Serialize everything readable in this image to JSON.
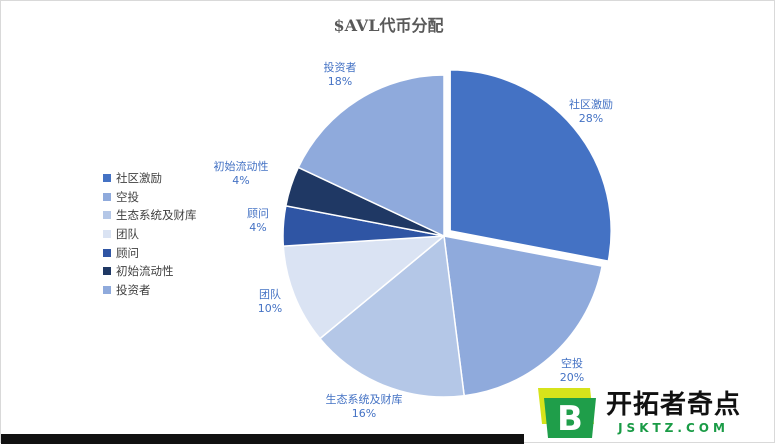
{
  "chart_data": {
    "type": "pie",
    "title": "$AVL代币分配",
    "categories": [
      "社区激励",
      "空投",
      "生态系统及财库",
      "团队",
      "顾问",
      "初始流动性",
      "投资者"
    ],
    "values": [
      28,
      20,
      16,
      10,
      4,
      4,
      18
    ],
    "value_labels": [
      "28%",
      "20%",
      "16%",
      "10%",
      "4%",
      "4%",
      "18%"
    ],
    "colors": [
      "#4472c4",
      "#8faadc",
      "#b4c7e7",
      "#dae3f3",
      "#2f55a4",
      "#1f3864",
      "#8faadc"
    ],
    "legend_position": "left",
    "exploded_slice": "社区激励",
    "label_color": "#4472c4"
  },
  "watermark": {
    "brand": "开拓者奇点",
    "url": "JSKTZ.COM",
    "logo_letter": "B",
    "colors": {
      "logo_green": "#1f9e4a",
      "logo_yellow": "#d6e31b",
      "url_green": "#1a9b46"
    }
  }
}
